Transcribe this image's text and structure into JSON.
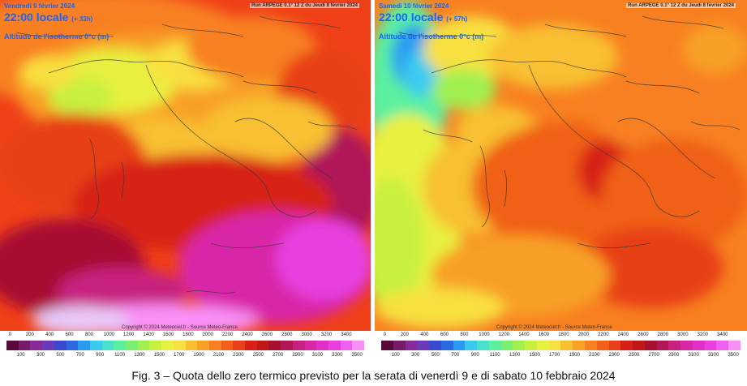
{
  "panels": [
    {
      "run_label": "Run ARPEGE 0.1° 12 Z du Jeudi 8 février 2024",
      "date_label": "Vendredi 9 février 2024",
      "time_label": "22:00 locale",
      "lead_label": "(+ 33h)",
      "param_label": "Altitude de l'isotherme 0°c (m)",
      "copyright": "Copyright © 2024 Meteociel.fr - Source Meteo-France"
    },
    {
      "run_label": "Run ARPEGE 0.1° 12 Z du Jeudi 8 février 2024",
      "date_label": "Samedi 10 février 2024",
      "time_label": "22:00 locale",
      "lead_label": "(+ 57h)",
      "param_label": "Altitude de l'isotherme 0°c (m)",
      "copyright": "Copyright © 2024 Meteociel.fr - Source Meteo-France"
    }
  ],
  "scale": {
    "top_labels": [
      "0",
      "200",
      "400",
      "600",
      "800",
      "1000",
      "1200",
      "1400",
      "1600",
      "1800",
      "2000",
      "2200",
      "2400",
      "2600",
      "2800",
      "3000",
      "3200",
      "3400"
    ],
    "bottom_labels": [
      "100",
      "300",
      "500",
      "700",
      "900",
      "1100",
      "1300",
      "1500",
      "1700",
      "1900",
      "2100",
      "2300",
      "2500",
      "2700",
      "2900",
      "3100",
      "3300",
      "3500"
    ],
    "colors": [
      "#5a0a3a",
      "#7a1a6a",
      "#8a2a9a",
      "#6a3ab8",
      "#3a4ad0",
      "#2a6ae0",
      "#2a9af0",
      "#3acaf0",
      "#4ae0d0",
      "#5af0a0",
      "#7af070",
      "#a0f050",
      "#c8f040",
      "#e8f040",
      "#f8e040",
      "#f8c030",
      "#f8a028",
      "#f88020",
      "#f06018",
      "#e84018",
      "#d82018",
      "#c01818",
      "#a81030",
      "#b01858",
      "#c82080",
      "#d828a8",
      "#e030c8",
      "#e840e0",
      "#f060f0",
      "#f890f8"
    ]
  },
  "caption": "Fig. 3 – Quota dello zero termico previsto per la serata di venerdì 9 e di sabato 10 febbraio 2024"
}
